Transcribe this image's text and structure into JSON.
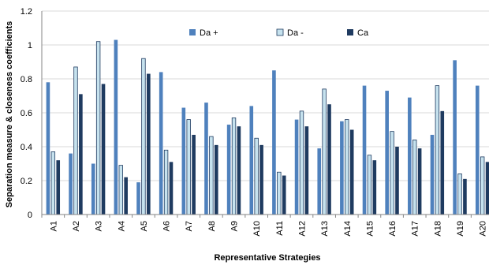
{
  "chart_data": {
    "type": "bar",
    "xlabel": "Representative Strategies",
    "ylabel": "Separation measure & closeness coefficients",
    "ylim": [
      0,
      1.2
    ],
    "yticks": [
      "0",
      "0.2",
      "0.4",
      "0.6",
      "0.8",
      "1",
      "1.2"
    ],
    "ytick_values": [
      0,
      0.2,
      0.4,
      0.6,
      0.8,
      1.0,
      1.2
    ],
    "grid": true,
    "legend_position": "top-center",
    "categories": [
      "A1",
      "A2",
      "A3",
      "A4",
      "A5",
      "A6",
      "A7",
      "A8",
      "A9",
      "A10",
      "A11",
      "A12",
      "A13",
      "A14",
      "A15",
      "A16",
      "A17",
      "A18",
      "A19",
      "A20"
    ],
    "series": [
      {
        "name": "Da +",
        "color": "#4f81bd",
        "values": [
          0.78,
          0.36,
          0.3,
          1.03,
          0.19,
          0.84,
          0.63,
          0.66,
          0.53,
          0.64,
          0.85,
          0.56,
          0.39,
          0.55,
          0.76,
          0.73,
          0.69,
          0.47,
          0.91,
          0.76
        ]
      },
      {
        "name": "Da -",
        "color": "#c6e2ee",
        "values": [
          0.37,
          0.87,
          1.02,
          0.29,
          0.92,
          0.38,
          0.56,
          0.46,
          0.57,
          0.45,
          0.25,
          0.61,
          0.74,
          0.56,
          0.35,
          0.49,
          0.44,
          0.76,
          0.24,
          0.34
        ]
      },
      {
        "name": "Ca",
        "color": "#1f3b60",
        "values": [
          0.32,
          0.71,
          0.77,
          0.22,
          0.83,
          0.31,
          0.47,
          0.41,
          0.52,
          0.41,
          0.23,
          0.52,
          0.65,
          0.5,
          0.32,
          0.4,
          0.39,
          0.61,
          0.21,
          0.31
        ]
      }
    ]
  }
}
